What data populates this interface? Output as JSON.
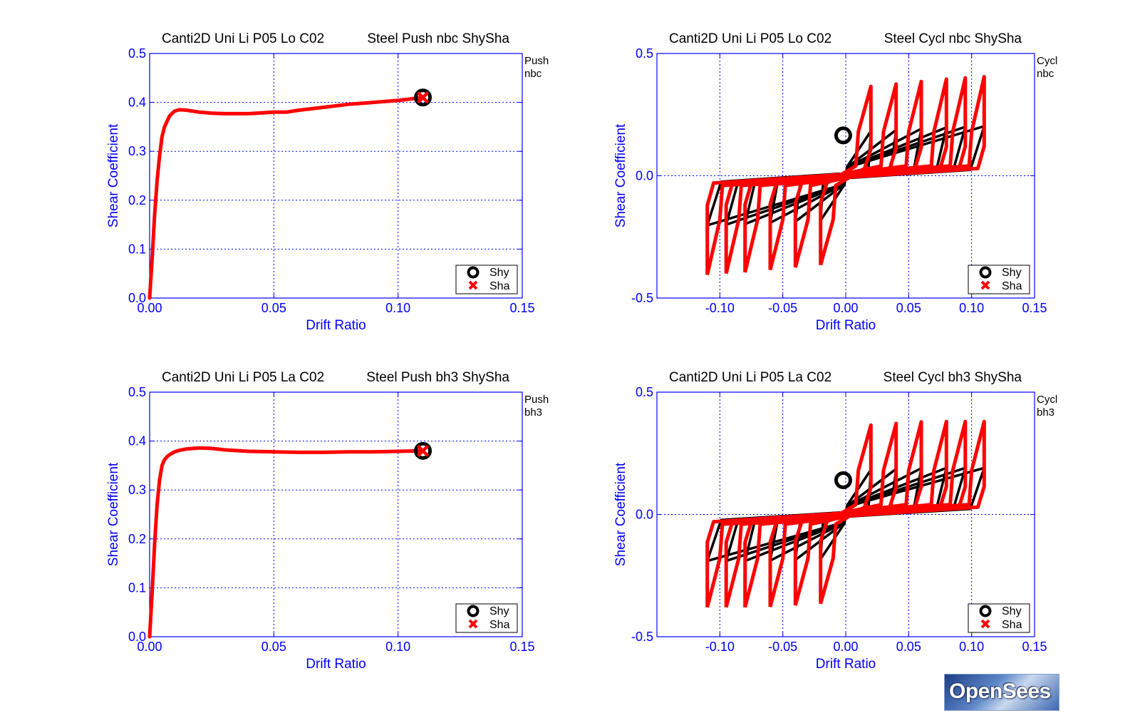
{
  "colors": {
    "axis": "#0000ff",
    "grid": "#0000ff",
    "push_curve": "#ff0000",
    "cyclic_black": "#000000",
    "cyclic_red": "#ff0000",
    "marker_shy": "#000000",
    "marker_sha": "#ff0000"
  },
  "legend": {
    "shy": "Shy",
    "sha": "Sha"
  },
  "logo": {
    "text": "OpenSees"
  },
  "chart_data": [
    {
      "type": "line",
      "id": "p1",
      "title_left": "Canti2D Uni Li P05 Lo C02",
      "title_right": "Steel Push nbc ShySha",
      "side_label": [
        "Push",
        "nbc"
      ],
      "xlabel": "Drift Ratio",
      "ylabel": "Shear Coefficient",
      "xlim": [
        0,
        0.15
      ],
      "ylim": [
        0,
        0.5
      ],
      "xticks": [
        0,
        0.05,
        0.1,
        0.15
      ],
      "xtick_labels": [
        "0.00",
        "0.05",
        "0.10",
        "0.15"
      ],
      "yticks": [
        0,
        0.1,
        0.2,
        0.3,
        0.4,
        0.5
      ],
      "ytick_labels": [
        "0.0",
        "0.1",
        "0.2",
        "0.3",
        "0.4",
        "0.5"
      ],
      "grid": true,
      "legend_location": "bottom-right",
      "series": [
        {
          "x": [
            0,
            0.001,
            0.002,
            0.003,
            0.004,
            0.005,
            0.006,
            0.008,
            0.01,
            0.012,
            0.015,
            0.02,
            0.025,
            0.03,
            0.04,
            0.05,
            0.055,
            0.06,
            0.07,
            0.08,
            0.09,
            0.1,
            0.11
          ],
          "y": [
            0,
            0.08,
            0.17,
            0.24,
            0.29,
            0.33,
            0.35,
            0.372,
            0.382,
            0.385,
            0.384,
            0.38,
            0.378,
            0.377,
            0.377,
            0.38,
            0.38,
            0.384,
            0.39,
            0.396,
            0.4,
            0.404,
            0.41
          ]
        }
      ],
      "markers": {
        "shy": [
          0.11,
          0.41
        ],
        "sha": [
          0.11,
          0.41
        ]
      }
    },
    {
      "type": "line",
      "id": "p2",
      "title_left": "Canti2D Uni Li P05 Lo C02",
      "title_right": "Steel Cycl nbc ShySha",
      "side_label": [
        "Cycl",
        "nbc"
      ],
      "xlabel": "Drift Ratio",
      "ylabel": "Shear Coefficient",
      "xlim": [
        -0.15,
        0.15
      ],
      "ylim": [
        -0.5,
        0.5
      ],
      "xticks": [
        -0.1,
        -0.05,
        0,
        0.05,
        0.1,
        0.15
      ],
      "xtick_labels": [
        "-0.10",
        "-0.05",
        "0.00",
        "0.05",
        "0.10",
        "0.15"
      ],
      "yticks": [
        -0.5,
        0,
        0.5
      ],
      "ytick_labels": [
        "-0.5",
        "0.0",
        "0.5"
      ],
      "grid": true,
      "legend_location": "bottom-right",
      "cycles": [
        {
          "amp": 0.02,
          "cap": 0.365
        },
        {
          "amp": 0.04,
          "cap": 0.375
        },
        {
          "amp": 0.06,
          "cap": 0.385
        },
        {
          "amp": 0.08,
          "cap": 0.395
        },
        {
          "amp": 0.095,
          "cap": 0.4
        },
        {
          "amp": 0.11,
          "cap": 0.405
        }
      ],
      "markers": {
        "shy": [
          -0.002,
          0.165
        ],
        "sha": []
      }
    },
    {
      "type": "line",
      "id": "p3",
      "title_left": "Canti2D Uni Li P05 La C02",
      "title_right": "Steel Push bh3 ShySha",
      "side_label": [
        "Push",
        "bh3"
      ],
      "xlabel": "Drift Ratio",
      "ylabel": "Shear Coefficient",
      "xlim": [
        0,
        0.15
      ],
      "ylim": [
        0,
        0.5
      ],
      "xticks": [
        0,
        0.05,
        0.1,
        0.15
      ],
      "xtick_labels": [
        "0.00",
        "0.05",
        "0.10",
        "0.15"
      ],
      "yticks": [
        0,
        0.1,
        0.2,
        0.3,
        0.4,
        0.5
      ],
      "ytick_labels": [
        "0.0",
        "0.1",
        "0.2",
        "0.3",
        "0.4",
        "0.5"
      ],
      "grid": true,
      "legend_location": "bottom-right",
      "series": [
        {
          "x": [
            0,
            0.001,
            0.002,
            0.003,
            0.004,
            0.005,
            0.006,
            0.007,
            0.008,
            0.01,
            0.012,
            0.015,
            0.02,
            0.025,
            0.03,
            0.04,
            0.05,
            0.06,
            0.07,
            0.08,
            0.09,
            0.1,
            0.11
          ],
          "y": [
            0,
            0.09,
            0.19,
            0.27,
            0.32,
            0.35,
            0.362,
            0.368,
            0.372,
            0.378,
            0.381,
            0.384,
            0.386,
            0.385,
            0.382,
            0.379,
            0.378,
            0.377,
            0.377,
            0.378,
            0.378,
            0.379,
            0.38
          ]
        }
      ],
      "markers": {
        "shy": [
          0.11,
          0.38
        ],
        "sha": [
          0.11,
          0.38
        ]
      }
    },
    {
      "type": "line",
      "id": "p4",
      "title_left": "Canti2D Uni Li P05 La C02",
      "title_right": "Steel Cycl bh3 ShySha",
      "side_label": [
        "Cycl",
        "bh3"
      ],
      "xlabel": "Drift Ratio",
      "ylabel": "Shear Coefficient",
      "xlim": [
        -0.15,
        0.15
      ],
      "ylim": [
        -0.5,
        0.5
      ],
      "xticks": [
        -0.1,
        -0.05,
        0,
        0.05,
        0.1,
        0.15
      ],
      "xtick_labels": [
        "-0.10",
        "-0.05",
        "0.00",
        "0.05",
        "0.10",
        "0.15"
      ],
      "yticks": [
        -0.5,
        0,
        0.5
      ],
      "ytick_labels": [
        "-0.5",
        "0.0",
        "0.5"
      ],
      "grid": true,
      "legend_location": "bottom-right",
      "cycles": [
        {
          "amp": 0.02,
          "cap": 0.365
        },
        {
          "amp": 0.04,
          "cap": 0.372
        },
        {
          "amp": 0.06,
          "cap": 0.378
        },
        {
          "amp": 0.08,
          "cap": 0.38
        },
        {
          "amp": 0.095,
          "cap": 0.38
        },
        {
          "amp": 0.11,
          "cap": 0.38
        }
      ],
      "markers": {
        "shy": [
          -0.002,
          0.14
        ],
        "sha": []
      }
    }
  ]
}
